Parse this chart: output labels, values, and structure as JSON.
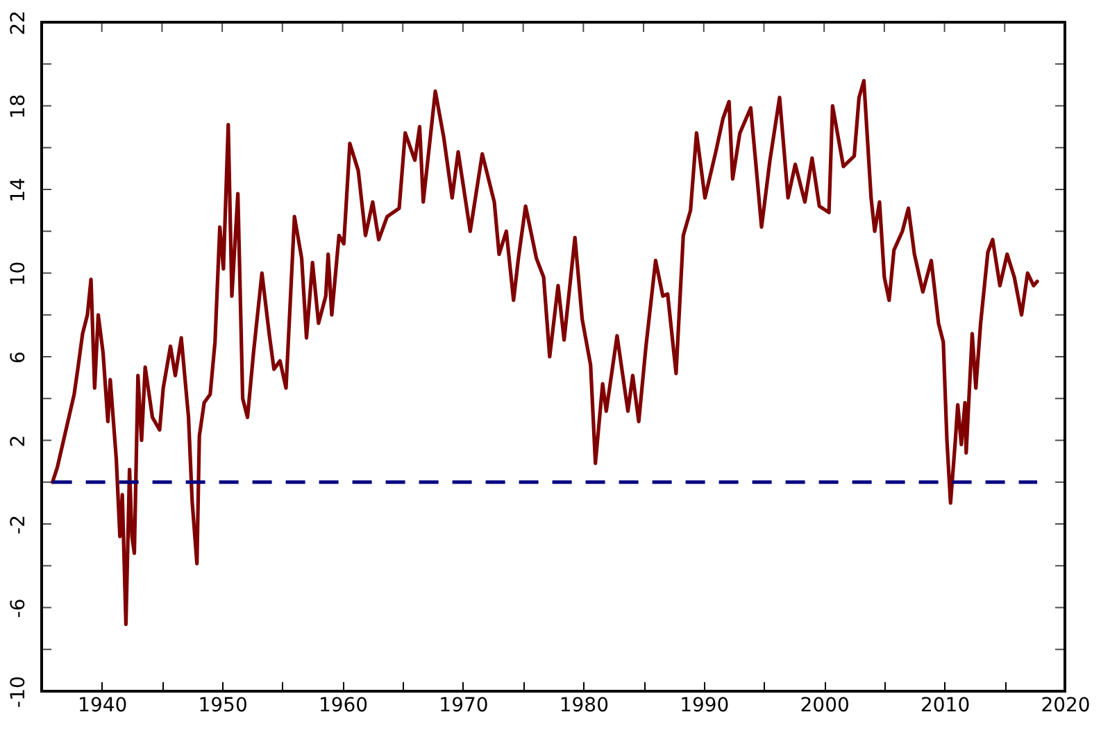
{
  "chart_data": {
    "type": "line",
    "xlim": [
      1935,
      2020
    ],
    "ylim": [
      -10,
      22
    ],
    "xticks": [
      1940,
      {
        "value": 1945,
        "label": null
      },
      1950,
      {
        "value": 1955,
        "label": null
      },
      1960,
      {
        "value": 1965,
        "label": null
      },
      1970,
      {
        "value": 1975,
        "label": null
      },
      1980,
      {
        "value": 1985,
        "label": null
      },
      1990,
      {
        "value": 1995,
        "label": null
      },
      2000,
      {
        "value": 2005,
        "label": null
      },
      2010,
      {
        "value": 2015,
        "label": null
      },
      2020
    ],
    "yticks": [
      -10,
      {
        "value": -8,
        "label": null
      },
      -6,
      {
        "value": -4,
        "label": null
      },
      -2,
      {
        "value": 0,
        "label": null
      },
      2,
      {
        "value": 4,
        "label": null
      },
      6,
      {
        "value": 8,
        "label": null
      },
      10,
      {
        "value": 12,
        "label": null
      },
      14,
      {
        "value": 16,
        "label": null
      },
      18,
      {
        "value": 20,
        "label": null
      },
      22
    ],
    "grid": false,
    "marker": "none",
    "line_style": "solid",
    "ref_lines": [
      {
        "axis": "y",
        "value": 0,
        "color": "#000080",
        "line_style": "dashed"
      }
    ],
    "series": [
      {
        "color": "#800000",
        "x": [
          1935.9,
          1936.3,
          1937.1,
          1937.7,
          1938.0,
          1938.4,
          1938.8,
          1939.1,
          1939.4,
          1939.7,
          1940.1,
          1940.5,
          1940.7,
          1941.2,
          1941.5,
          1941.7,
          1942.0,
          1942.3,
          1942.5,
          1942.7,
          1943.0,
          1943.3,
          1943.6,
          1944.2,
          1944.8,
          1945.1,
          1945.7,
          1946.1,
          1946.6,
          1947.2,
          1947.5,
          1947.9,
          1948.1,
          1948.5,
          1949.0,
          1949.4,
          1949.8,
          1950.1,
          1950.5,
          1950.8,
          1951.3,
          1951.7,
          1952.1,
          1952.6,
          1953.3,
          1953.9,
          1954.3,
          1954.8,
          1955.3,
          1956.0,
          1956.6,
          1957.0,
          1957.5,
          1958.0,
          1958.6,
          1958.8,
          1959.1,
          1959.7,
          1960.1,
          1960.6,
          1961.3,
          1961.9,
          1962.5,
          1963.0,
          1963.7,
          1964.7,
          1965.2,
          1966.0,
          1966.4,
          1966.7,
          1967.7,
          1968.4,
          1969.1,
          1969.6,
          1970.6,
          1971.6,
          1972.6,
          1973.0,
          1973.6,
          1974.2,
          1974.6,
          1975.2,
          1976.1,
          1976.7,
          1977.2,
          1977.9,
          1978.4,
          1979.3,
          1979.9,
          1980.6,
          1981.0,
          1981.6,
          1981.9,
          1982.8,
          1983.7,
          1984.1,
          1984.6,
          1985.2,
          1986.0,
          1986.6,
          1987.0,
          1987.7,
          1988.3,
          1988.9,
          1989.4,
          1990.1,
          1991.0,
          1991.6,
          1992.1,
          1992.4,
          1993.0,
          1993.9,
          1994.3,
          1994.8,
          1995.5,
          1996.3,
          1997.0,
          1997.6,
          1998.4,
          1999.0,
          1999.6,
          2000.4,
          2000.7,
          2001.6,
          2002.5,
          2002.9,
          2003.3,
          2003.9,
          2004.2,
          2004.6,
          2005.0,
          2005.4,
          2005.8,
          2006.5,
          2007.0,
          2007.5,
          2008.2,
          2008.9,
          2009.5,
          2009.9,
          2010.2,
          2010.5,
          2010.9,
          2011.1,
          2011.4,
          2011.7,
          2011.8,
          2012.3,
          2012.6,
          2013.0,
          2013.6,
          2014.0,
          2014.6,
          2015.2,
          2015.8,
          2016.4,
          2016.9,
          2017.4,
          2017.7
        ],
        "values": [
          0.0,
          0.7,
          2.7,
          4.2,
          5.4,
          7.1,
          8.0,
          9.7,
          4.5,
          8.0,
          6.2,
          2.9,
          4.9,
          1.1,
          -2.6,
          -0.6,
          -6.8,
          0.6,
          -2.6,
          -3.4,
          5.1,
          2.0,
          5.5,
          3.1,
          2.5,
          4.5,
          6.5,
          5.1,
          6.9,
          3.1,
          -0.9,
          -3.9,
          2.2,
          3.8,
          4.2,
          6.7,
          12.2,
          10.2,
          17.1,
          8.9,
          13.8,
          4.0,
          3.1,
          6.2,
          10.0,
          7.1,
          5.4,
          5.8,
          4.5,
          12.7,
          10.7,
          6.9,
          10.5,
          7.6,
          8.9,
          10.9,
          8.0,
          11.8,
          11.4,
          16.2,
          14.9,
          11.8,
          13.4,
          11.6,
          12.7,
          13.1,
          16.7,
          15.4,
          17.0,
          13.4,
          18.7,
          16.5,
          13.6,
          15.8,
          12.0,
          15.7,
          13.4,
          10.9,
          12.0,
          8.7,
          10.7,
          13.2,
          10.7,
          9.8,
          6.0,
          9.4,
          6.8,
          11.7,
          7.8,
          5.6,
          0.9,
          4.7,
          3.4,
          7.0,
          3.4,
          5.1,
          2.9,
          6.5,
          10.6,
          8.9,
          9.0,
          5.2,
          11.8,
          13.0,
          16.7,
          13.6,
          15.8,
          17.4,
          18.2,
          14.5,
          16.7,
          17.9,
          15.4,
          12.2,
          15.4,
          18.4,
          13.6,
          15.2,
          13.4,
          15.5,
          13.2,
          12.9,
          18.0,
          15.1,
          15.6,
          18.4,
          19.2,
          13.6,
          12.0,
          13.4,
          9.8,
          8.7,
          11.1,
          12.0,
          13.1,
          10.9,
          9.1,
          10.6,
          7.6,
          6.7,
          2.0,
          -1.0,
          2.0,
          3.7,
          1.8,
          3.8,
          1.4,
          7.1,
          4.5,
          7.6,
          11.0,
          11.6,
          9.4,
          10.9,
          9.8,
          8.0,
          10.0,
          9.4,
          9.6
        ]
      }
    ]
  }
}
